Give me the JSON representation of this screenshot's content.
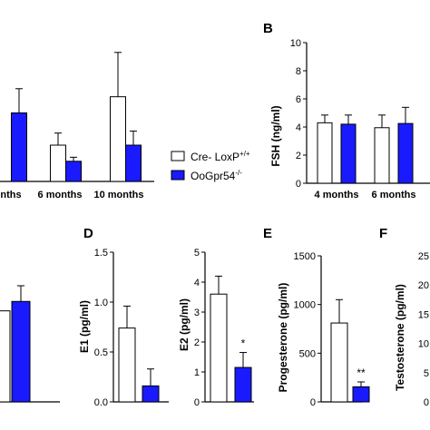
{
  "colors": {
    "wildtype": "#ffffff",
    "knockout": "#1a1aff",
    "axis": "#000000"
  },
  "legend": {
    "wildtype": {
      "base": "Cre- LoxP",
      "sup": "+/+"
    },
    "knockout": {
      "base": "OoGpr54",
      "sup": "-/-"
    }
  },
  "chart_data": [
    {
      "id": "A_partial",
      "type": "bar",
      "letter": "",
      "ylabel": "",
      "categories": [
        "nths",
        "6 months",
        "10 months"
      ],
      "series": [
        {
          "name": "Cre- LoxP+/+",
          "values": [
            null,
            0.9,
            2.1
          ],
          "errors": [
            null,
            0.3,
            1.1
          ]
        },
        {
          "name": "OoGpr54-/-",
          "values": [
            1.7,
            0.5,
            0.9
          ],
          "errors": [
            0.6,
            0.1,
            0.35
          ]
        }
      ],
      "ylim": [
        0,
        3.6
      ]
    },
    {
      "id": "B",
      "type": "bar",
      "letter": "B",
      "ylabel": "FSH (ng/ml)",
      "yticks": [
        "0",
        "2",
        "4",
        "6",
        "8",
        "10"
      ],
      "ylim": [
        0,
        10
      ],
      "categories": [
        "4 months",
        "6 months"
      ],
      "series": [
        {
          "name": "Cre- LoxP+/+",
          "values": [
            4.3,
            3.95
          ],
          "errors": [
            0.55,
            0.9
          ]
        },
        {
          "name": "OoGpr54-/-",
          "values": [
            4.2,
            4.25
          ],
          "errors": [
            0.65,
            1.15
          ]
        }
      ]
    },
    {
      "id": "C_partial",
      "type": "bar",
      "letter": "",
      "ylabel": "",
      "series": [
        {
          "name": "Cre- LoxP+/+",
          "values": [
            0.58
          ],
          "errors": [
            0
          ]
        },
        {
          "name": "OoGpr54-/-",
          "values": [
            0.64
          ],
          "errors": [
            0.1
          ]
        }
      ],
      "ylim": [
        0,
        1.0
      ]
    },
    {
      "id": "D_E1",
      "type": "bar",
      "letter": "D",
      "ylabel": "E1 (pg/ml)",
      "yticks": [
        "0.0",
        "0.5",
        "1.0",
        "1.5"
      ],
      "ylim": [
        0,
        1.5
      ],
      "series": [
        {
          "name": "Cre- LoxP+/+",
          "values": [
            0.74
          ],
          "errors": [
            0.22
          ]
        },
        {
          "name": "OoGpr54-/-",
          "values": [
            0.16
          ],
          "errors": [
            0.17
          ]
        }
      ],
      "annotations": []
    },
    {
      "id": "D_E2",
      "type": "bar",
      "letter": "",
      "ylabel": "E2 (pg/ml)",
      "yticks": [
        "0",
        "1",
        "2",
        "3",
        "4",
        "5"
      ],
      "ylim": [
        0,
        5
      ],
      "series": [
        {
          "name": "Cre- LoxP+/+",
          "values": [
            3.6
          ],
          "errors": [
            0.6
          ]
        },
        {
          "name": "OoGpr54-/-",
          "values": [
            1.15
          ],
          "errors": [
            0.5
          ]
        }
      ],
      "annotations": [
        "",
        "*"
      ]
    },
    {
      "id": "E",
      "type": "bar",
      "letter": "E",
      "ylabel": "Progesterone (pg/ml)",
      "yticks": [
        "0",
        "500",
        "1000",
        "1500"
      ],
      "ylim": [
        0,
        1500
      ],
      "series": [
        {
          "name": "Cre- LoxP+/+",
          "values": [
            810
          ],
          "errors": [
            240
          ]
        },
        {
          "name": "OoGpr54-/-",
          "values": [
            155
          ],
          "errors": [
            50
          ]
        }
      ],
      "annotations": [
        "",
        "**"
      ]
    },
    {
      "id": "F_partial",
      "type": "bar",
      "letter": "F",
      "ylabel": "Testosterone (pg/ml)",
      "yticks": [
        "0",
        "5",
        "10",
        "15",
        "20",
        "25"
      ],
      "ylim": [
        0,
        25
      ],
      "series": []
    }
  ]
}
